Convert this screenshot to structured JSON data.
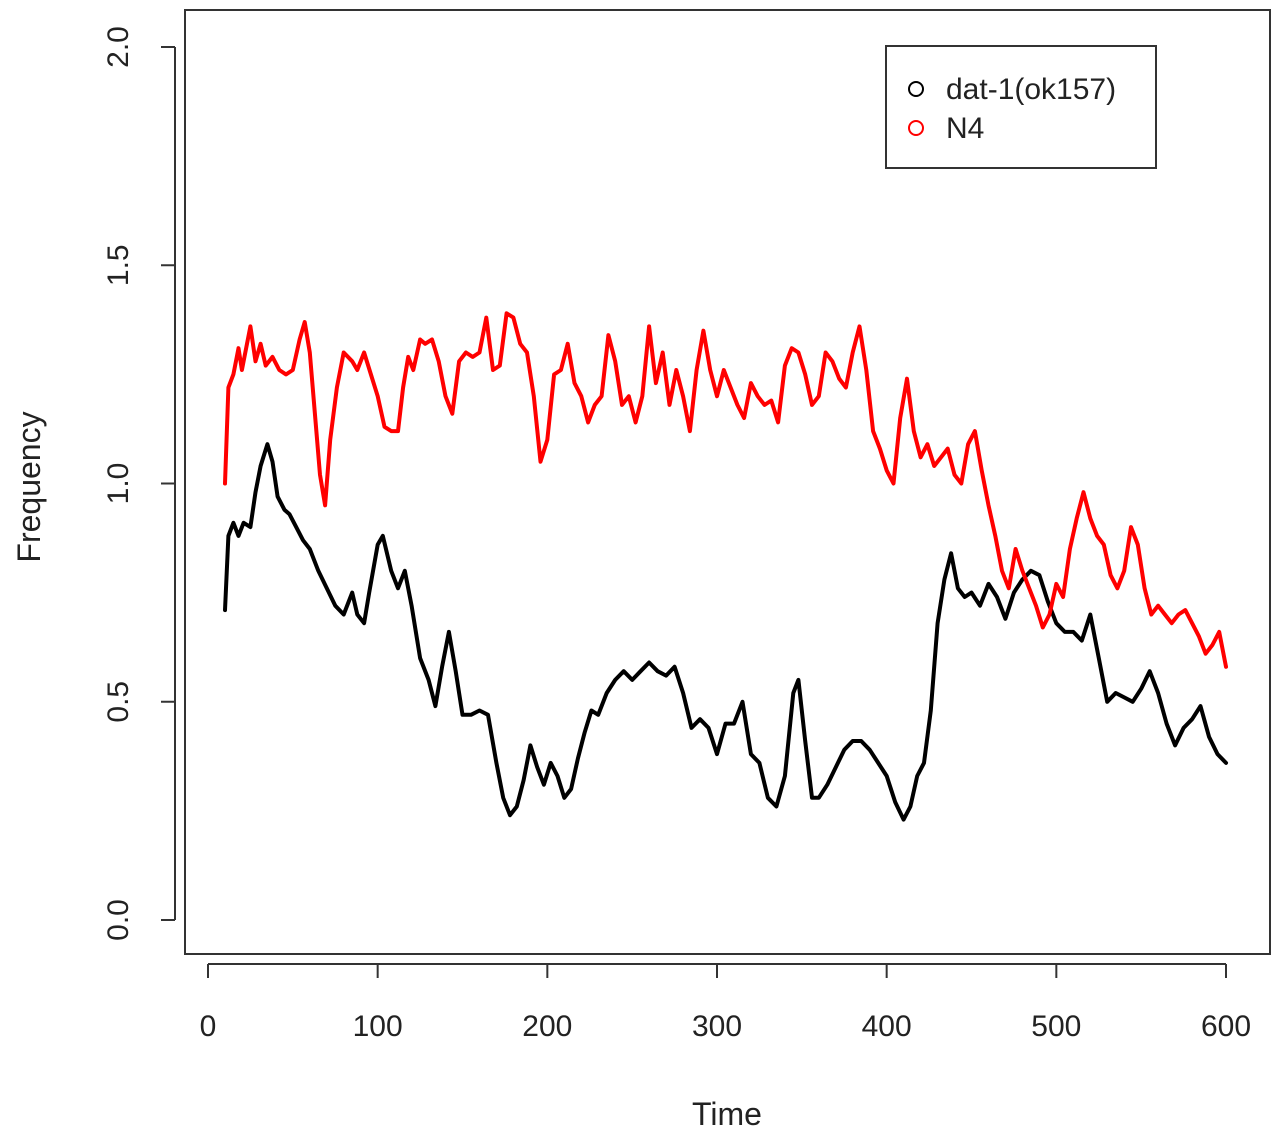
{
  "chart_data": {
    "type": "line",
    "xlabel": "Time",
    "ylabel": "Frequency",
    "xlim": [
      0,
      600
    ],
    "ylim": [
      0,
      2.0
    ],
    "x_ticks": [
      "0",
      "100",
      "200",
      "300",
      "400",
      "500",
      "600"
    ],
    "y_ticks": [
      "0.0",
      "0.5",
      "1.0",
      "1.5",
      "2.0"
    ],
    "grid": false,
    "legend": {
      "placement": "top-right"
    },
    "series": [
      {
        "name": "dat-1(ok157)",
        "color": "#000000",
        "x": [
          10,
          12,
          15,
          18,
          21,
          25,
          28,
          31,
          35,
          38,
          41,
          45,
          48,
          52,
          56,
          60,
          65,
          70,
          75,
          80,
          85,
          88,
          92,
          95,
          100,
          103,
          108,
          112,
          116,
          120,
          125,
          130,
          134,
          138,
          142,
          146,
          150,
          155,
          160,
          165,
          170,
          174,
          178,
          182,
          186,
          190,
          194,
          198,
          202,
          206,
          210,
          214,
          218,
          222,
          226,
          230,
          235,
          240,
          245,
          250,
          255,
          260,
          265,
          270,
          275,
          280,
          285,
          290,
          295,
          300,
          305,
          310,
          315,
          320,
          325,
          330,
          335,
          340,
          345,
          348,
          352,
          356,
          360,
          365,
          370,
          375,
          380,
          385,
          390,
          395,
          400,
          405,
          410,
          414,
          418,
          422,
          426,
          430,
          434,
          438,
          442,
          446,
          450,
          455,
          460,
          465,
          470,
          475,
          480,
          485,
          490,
          495,
          500,
          505,
          510,
          515,
          520,
          525,
          530,
          535,
          540,
          545,
          550,
          555,
          560,
          565,
          570,
          575,
          580,
          585,
          590,
          595,
          600
        ],
        "values": [
          0.71,
          0.88,
          0.91,
          0.88,
          0.91,
          0.9,
          0.98,
          1.04,
          1.09,
          1.05,
          0.97,
          0.94,
          0.93,
          0.9,
          0.87,
          0.85,
          0.8,
          0.76,
          0.72,
          0.7,
          0.75,
          0.7,
          0.68,
          0.75,
          0.86,
          0.88,
          0.8,
          0.76,
          0.8,
          0.72,
          0.6,
          0.55,
          0.49,
          0.58,
          0.66,
          0.57,
          0.47,
          0.47,
          0.48,
          0.47,
          0.36,
          0.28,
          0.24,
          0.26,
          0.32,
          0.4,
          0.35,
          0.31,
          0.36,
          0.33,
          0.28,
          0.3,
          0.37,
          0.43,
          0.48,
          0.47,
          0.52,
          0.55,
          0.57,
          0.55,
          0.57,
          0.59,
          0.57,
          0.56,
          0.58,
          0.52,
          0.44,
          0.46,
          0.44,
          0.38,
          0.45,
          0.45,
          0.5,
          0.38,
          0.36,
          0.28,
          0.26,
          0.33,
          0.52,
          0.55,
          0.41,
          0.28,
          0.28,
          0.31,
          0.35,
          0.39,
          0.41,
          0.41,
          0.39,
          0.36,
          0.33,
          0.27,
          0.23,
          0.26,
          0.33,
          0.36,
          0.48,
          0.68,
          0.78,
          0.84,
          0.76,
          0.74,
          0.75,
          0.72,
          0.77,
          0.74,
          0.69,
          0.75,
          0.78,
          0.8,
          0.79,
          0.73,
          0.68,
          0.66,
          0.66,
          0.64,
          0.7,
          0.6,
          0.5,
          0.52,
          0.51,
          0.5,
          0.53,
          0.57,
          0.52,
          0.45,
          0.4,
          0.44,
          0.46,
          0.49,
          0.42,
          0.38,
          0.36
        ]
      },
      {
        "name": "N4",
        "color": "#ff0000",
        "x": [
          10,
          12,
          15,
          18,
          20,
          22,
          25,
          28,
          31,
          34,
          38,
          42,
          46,
          50,
          54,
          57,
          60,
          63,
          66,
          69,
          72,
          76,
          80,
          85,
          88,
          92,
          96,
          100,
          104,
          108,
          112,
          115,
          118,
          121,
          125,
          128,
          132,
          136,
          140,
          144,
          148,
          152,
          156,
          160,
          164,
          168,
          172,
          176,
          180,
          184,
          188,
          192,
          196,
          200,
          204,
          208,
          212,
          216,
          220,
          224,
          228,
          232,
          236,
          240,
          244,
          248,
          252,
          256,
          260,
          264,
          268,
          272,
          276,
          280,
          284,
          288,
          292,
          296,
          300,
          304,
          308,
          312,
          316,
          320,
          324,
          328,
          332,
          336,
          340,
          344,
          348,
          352,
          356,
          360,
          364,
          368,
          372,
          376,
          380,
          384,
          388,
          392,
          396,
          400,
          404,
          408,
          412,
          416,
          420,
          424,
          428,
          432,
          436,
          440,
          444,
          448,
          452,
          456,
          460,
          464,
          468,
          472,
          476,
          480,
          484,
          488,
          492,
          496,
          500,
          504,
          508,
          512,
          516,
          520,
          524,
          528,
          532,
          536,
          540,
          544,
          548,
          552,
          556,
          560,
          564,
          568,
          572,
          576,
          580,
          584,
          588,
          592,
          596,
          600
        ],
        "values": [
          1.0,
          1.22,
          1.25,
          1.31,
          1.26,
          1.3,
          1.36,
          1.28,
          1.32,
          1.27,
          1.29,
          1.26,
          1.25,
          1.26,
          1.33,
          1.37,
          1.3,
          1.16,
          1.02,
          0.95,
          1.1,
          1.22,
          1.3,
          1.28,
          1.26,
          1.3,
          1.25,
          1.2,
          1.13,
          1.12,
          1.12,
          1.22,
          1.29,
          1.26,
          1.33,
          1.32,
          1.33,
          1.28,
          1.2,
          1.16,
          1.28,
          1.3,
          1.29,
          1.3,
          1.38,
          1.26,
          1.27,
          1.39,
          1.38,
          1.32,
          1.3,
          1.2,
          1.05,
          1.1,
          1.25,
          1.26,
          1.32,
          1.23,
          1.2,
          1.14,
          1.18,
          1.2,
          1.34,
          1.28,
          1.18,
          1.2,
          1.14,
          1.2,
          1.36,
          1.23,
          1.3,
          1.18,
          1.26,
          1.2,
          1.12,
          1.26,
          1.35,
          1.26,
          1.2,
          1.26,
          1.22,
          1.18,
          1.15,
          1.23,
          1.2,
          1.18,
          1.19,
          1.14,
          1.27,
          1.31,
          1.3,
          1.25,
          1.18,
          1.2,
          1.3,
          1.28,
          1.24,
          1.22,
          1.3,
          1.36,
          1.26,
          1.12,
          1.08,
          1.03,
          1.0,
          1.15,
          1.24,
          1.12,
          1.06,
          1.09,
          1.04,
          1.06,
          1.08,
          1.02,
          1.0,
          1.09,
          1.12,
          1.03,
          0.95,
          0.88,
          0.8,
          0.76,
          0.85,
          0.8,
          0.76,
          0.72,
          0.67,
          0.7,
          0.77,
          0.74,
          0.85,
          0.92,
          0.98,
          0.92,
          0.88,
          0.86,
          0.79,
          0.76,
          0.8,
          0.9,
          0.86,
          0.76,
          0.7,
          0.72,
          0.7,
          0.68,
          0.7,
          0.71,
          0.68,
          0.65,
          0.61,
          0.63,
          0.66,
          0.58
        ]
      }
    ]
  }
}
